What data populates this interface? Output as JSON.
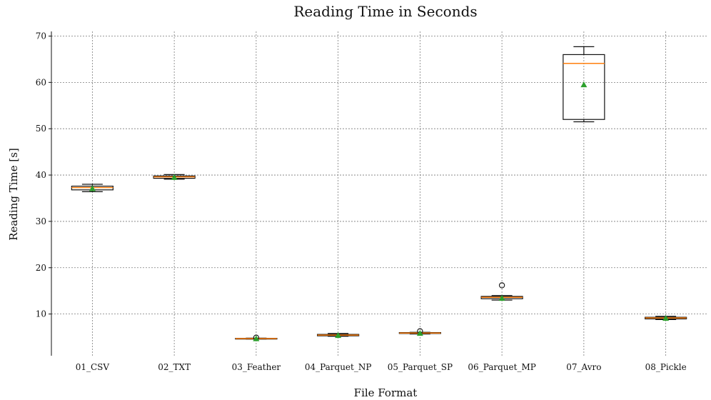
{
  "chart_data": {
    "type": "box",
    "title": "Reading Time in Seconds",
    "xlabel": "File Format",
    "ylabel": "Reading Time [s]",
    "ylim": [
      1,
      71
    ],
    "y_ticks": [
      10,
      20,
      30,
      40,
      50,
      60,
      70
    ],
    "grid": true,
    "categories": [
      "01_CSV",
      "02_TXT",
      "03_Feather",
      "04_Parquet_NP",
      "05_Parquet_SP",
      "06_Parquet_MP",
      "07_Avro",
      "08_Pickle"
    ],
    "series": [
      {
        "category": "01_CSV",
        "whisker_low": 36.4,
        "q1": 36.8,
        "median": 37.3,
        "q3": 37.6,
        "whisker_high": 38.0,
        "mean": 37.1,
        "outliers": []
      },
      {
        "category": "02_TXT",
        "whisker_low": 39.1,
        "q1": 39.3,
        "median": 39.6,
        "q3": 39.8,
        "whisker_high": 40.1,
        "mean": 39.5,
        "outliers": []
      },
      {
        "category": "03_Feather",
        "whisker_low": 4.6,
        "q1": 4.65,
        "median": 4.7,
        "q3": 4.75,
        "whisker_high": 4.8,
        "mean": 4.7,
        "outliers": [
          4.9
        ]
      },
      {
        "category": "04_Parquet_NP",
        "whisker_low": 5.2,
        "q1": 5.3,
        "median": 5.45,
        "q3": 5.6,
        "whisker_high": 5.8,
        "mean": 5.4,
        "outliers": []
      },
      {
        "category": "05_Parquet_SP",
        "whisker_low": 5.7,
        "q1": 5.8,
        "median": 5.9,
        "q3": 6.0,
        "whisker_high": 6.05,
        "mean": 5.85,
        "outliers": [
          6.3
        ]
      },
      {
        "category": "06_Parquet_MP",
        "whisker_low": 13.0,
        "q1": 13.3,
        "median": 13.6,
        "q3": 13.8,
        "whisker_high": 14.0,
        "mean": 13.4,
        "outliers": [
          16.2
        ]
      },
      {
        "category": "07_Avro",
        "whisker_low": 51.5,
        "q1": 52.0,
        "median": 64.1,
        "q3": 66.0,
        "whisker_high": 67.7,
        "mean": 59.5,
        "outliers": []
      },
      {
        "category": "08_Pickle",
        "whisker_low": 8.8,
        "q1": 8.95,
        "median": 9.15,
        "q3": 9.3,
        "whisker_high": 9.5,
        "mean": 9.1,
        "outliers": []
      }
    ],
    "colors": {
      "median": "#ff7f0e",
      "mean": "#2ca02c",
      "box": "#111111",
      "grid": "#7a7a7a"
    }
  }
}
